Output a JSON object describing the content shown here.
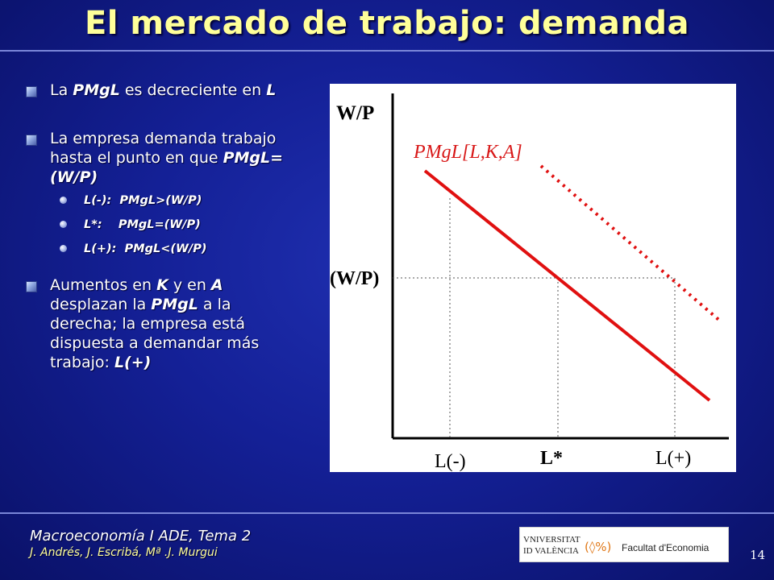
{
  "slide": {
    "title": "El mercado de trabajo: demanda",
    "bullets": [
      {
        "pre": "La ",
        "em1": "PMgL",
        "mid": " es decreciente en ",
        "em2": "L"
      },
      {
        "pre": "La empresa demanda trabajo hasta el punto en que ",
        "em1": "PMgL=(W/P)"
      },
      {
        "pre": "Aumentos en ",
        "em1": "K",
        "mid": " y en ",
        "em2": "A",
        "mid2": " desplazan la ",
        "em3": "PMgL",
        "post": " a la derecha; la empresa está dispuesta a demandar más trabajo: ",
        "em4": "L(+)"
      }
    ],
    "sub_bullets": [
      "L(-):  PMgL>(W/P)",
      "L*:    PMgL=(W/P)",
      "L(+):  PMgL<(W/P)"
    ]
  },
  "figure": {
    "y_axis_label": "W/P",
    "curve_label": "PMgL[L,K,A]",
    "wage_label": "(W/P)",
    "x_labels": [
      "L(-)",
      "L*",
      "L(+)"
    ],
    "colors": {
      "curve": "#e01010",
      "axis": "#000000",
      "label_red": "#d81818"
    }
  },
  "footer": {
    "course": "Macroeconomía I ADE, Tema 2",
    "authors": "J. Andrés, J. Escribá, Mª .J. Murgui",
    "page_number": "14",
    "logo": {
      "university_line1": "VNIVERSITAT",
      "university_line2": "ID VALÈNCIA",
      "faculty": "Facultat d'Economia"
    }
  }
}
